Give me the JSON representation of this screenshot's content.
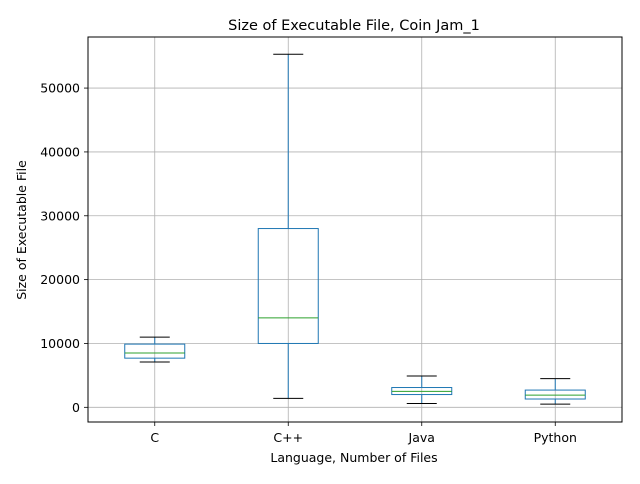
{
  "chart_data": {
    "type": "box",
    "title": "Size of Executable File, Coin Jam_1",
    "xlabel": "Language, Number of Files",
    "ylabel": "Size of Executable File",
    "ylim": [
      -2300,
      58000
    ],
    "yticks": [
      0,
      10000,
      20000,
      30000,
      40000,
      50000
    ],
    "ytick_labels": [
      "0",
      "10000",
      "20000",
      "30000",
      "40000",
      "50000"
    ],
    "grid": true,
    "colors": {
      "box": "#1f77b4",
      "median": "#2ca02c",
      "whisker_cap": "#000000",
      "grid": "#b0b0b0"
    },
    "categories": [
      "C",
      "C++",
      "Java",
      "Python"
    ],
    "boxes": [
      {
        "label": "C",
        "whisker_low": 7100,
        "q1": 7700,
        "median": 8500,
        "q3": 9900,
        "whisker_high": 11000
      },
      {
        "label": "C++",
        "whisker_low": 1400,
        "q1": 10000,
        "median": 14000,
        "q3": 28000,
        "whisker_high": 55300
      },
      {
        "label": "Java",
        "whisker_low": 600,
        "q1": 2000,
        "median": 2500,
        "q3": 3100,
        "whisker_high": 4900
      },
      {
        "label": "Python",
        "whisker_low": 500,
        "q1": 1300,
        "median": 1900,
        "q3": 2700,
        "whisker_high": 4500
      }
    ]
  }
}
